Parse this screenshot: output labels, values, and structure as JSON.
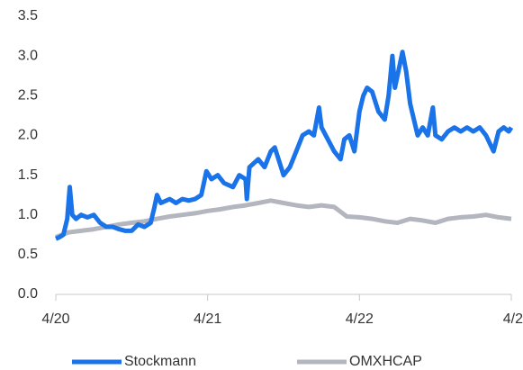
{
  "chart_data": {
    "type": "line",
    "xlim": [
      0,
      36
    ],
    "xticks": [
      {
        "value": 0,
        "label": "4/20"
      },
      {
        "value": 12,
        "label": "4/21"
      },
      {
        "value": 24,
        "label": "4/22"
      },
      {
        "value": 36,
        "label": "4/2"
      }
    ],
    "ylim": [
      0,
      3.5
    ],
    "yticks": [
      {
        "value": 0,
        "label": "0.0"
      },
      0.5,
      {
        "value": 1,
        "label": "1.0"
      },
      1.5,
      {
        "value": 2,
        "label": "2.0"
      },
      2.5,
      {
        "value": 3,
        "label": "3.0"
      },
      3.5
    ],
    "grid": false,
    "legend": "bottom",
    "series": [
      {
        "name": "Stockmann",
        "color": "#1a73e8",
        "x": [
          0,
          0.3,
          0.6,
          0.9,
          1.1,
          1.3,
          1.6,
          2,
          2.5,
          3,
          3.5,
          4,
          4.5,
          5,
          5.5,
          6,
          6.5,
          7,
          7.5,
          7.8,
          8,
          8.3,
          9,
          9.5,
          10,
          10.5,
          11,
          11.5,
          11.9,
          12.3,
          12.8,
          13.3,
          14,
          14.5,
          15,
          15.1,
          15.3,
          16,
          16.5,
          17,
          17.3,
          17.7,
          18,
          18.5,
          19,
          19.5,
          20,
          20.4,
          20.8,
          21,
          21.5,
          22,
          22.5,
          22.8,
          23.2,
          23.6,
          24,
          24.3,
          24.6,
          25,
          25.5,
          26,
          26.3,
          26.6,
          26.8,
          27.2,
          27.4,
          27.7,
          28,
          28.3,
          28.6,
          29,
          29.4,
          29.8,
          30,
          30.5,
          31,
          31.5,
          32,
          32.5,
          33,
          33.5,
          34,
          34.6,
          35,
          35.4,
          35.8,
          36
        ],
        "values": [
          0.7,
          0.72,
          0.75,
          0.95,
          1.35,
          1.0,
          0.95,
          1.0,
          0.97,
          1.0,
          0.9,
          0.85,
          0.85,
          0.82,
          0.8,
          0.8,
          0.88,
          0.85,
          0.9,
          1.1,
          1.25,
          1.15,
          1.2,
          1.15,
          1.2,
          1.18,
          1.2,
          1.25,
          1.55,
          1.45,
          1.5,
          1.4,
          1.35,
          1.5,
          1.45,
          1.2,
          1.6,
          1.7,
          1.6,
          1.8,
          1.85,
          1.65,
          1.5,
          1.6,
          1.8,
          2.0,
          2.05,
          2.0,
          2.35,
          2.1,
          1.95,
          1.8,
          1.7,
          1.95,
          2.0,
          1.8,
          2.3,
          2.5,
          2.6,
          2.55,
          2.3,
          2.2,
          2.5,
          3.0,
          2.6,
          2.9,
          3.05,
          2.8,
          2.4,
          2.2,
          2.0,
          2.1,
          2.0,
          2.35,
          2.0,
          1.95,
          2.05,
          2.1,
          2.05,
          2.1,
          2.05,
          2.1,
          2.0,
          1.8,
          2.05,
          2.1,
          2.05,
          2.1
        ]
      },
      {
        "name": "OMXHCAP",
        "color": "#b4b6bf",
        "x": [
          0,
          1,
          2,
          3,
          4,
          5,
          6,
          7,
          8,
          9,
          10,
          11,
          12,
          13,
          14,
          15,
          16,
          17,
          18,
          19,
          20,
          21,
          22,
          23,
          24,
          25,
          26,
          27,
          28,
          29,
          30,
          31,
          32,
          33,
          34,
          35,
          36
        ],
        "values": [
          0.72,
          0.78,
          0.8,
          0.82,
          0.85,
          0.88,
          0.9,
          0.92,
          0.95,
          0.98,
          1.0,
          1.02,
          1.05,
          1.07,
          1.1,
          1.12,
          1.15,
          1.18,
          1.15,
          1.12,
          1.1,
          1.12,
          1.1,
          0.98,
          0.97,
          0.95,
          0.92,
          0.9,
          0.95,
          0.93,
          0.9,
          0.95,
          0.97,
          0.98,
          1.0,
          0.97,
          0.95
        ]
      }
    ]
  }
}
